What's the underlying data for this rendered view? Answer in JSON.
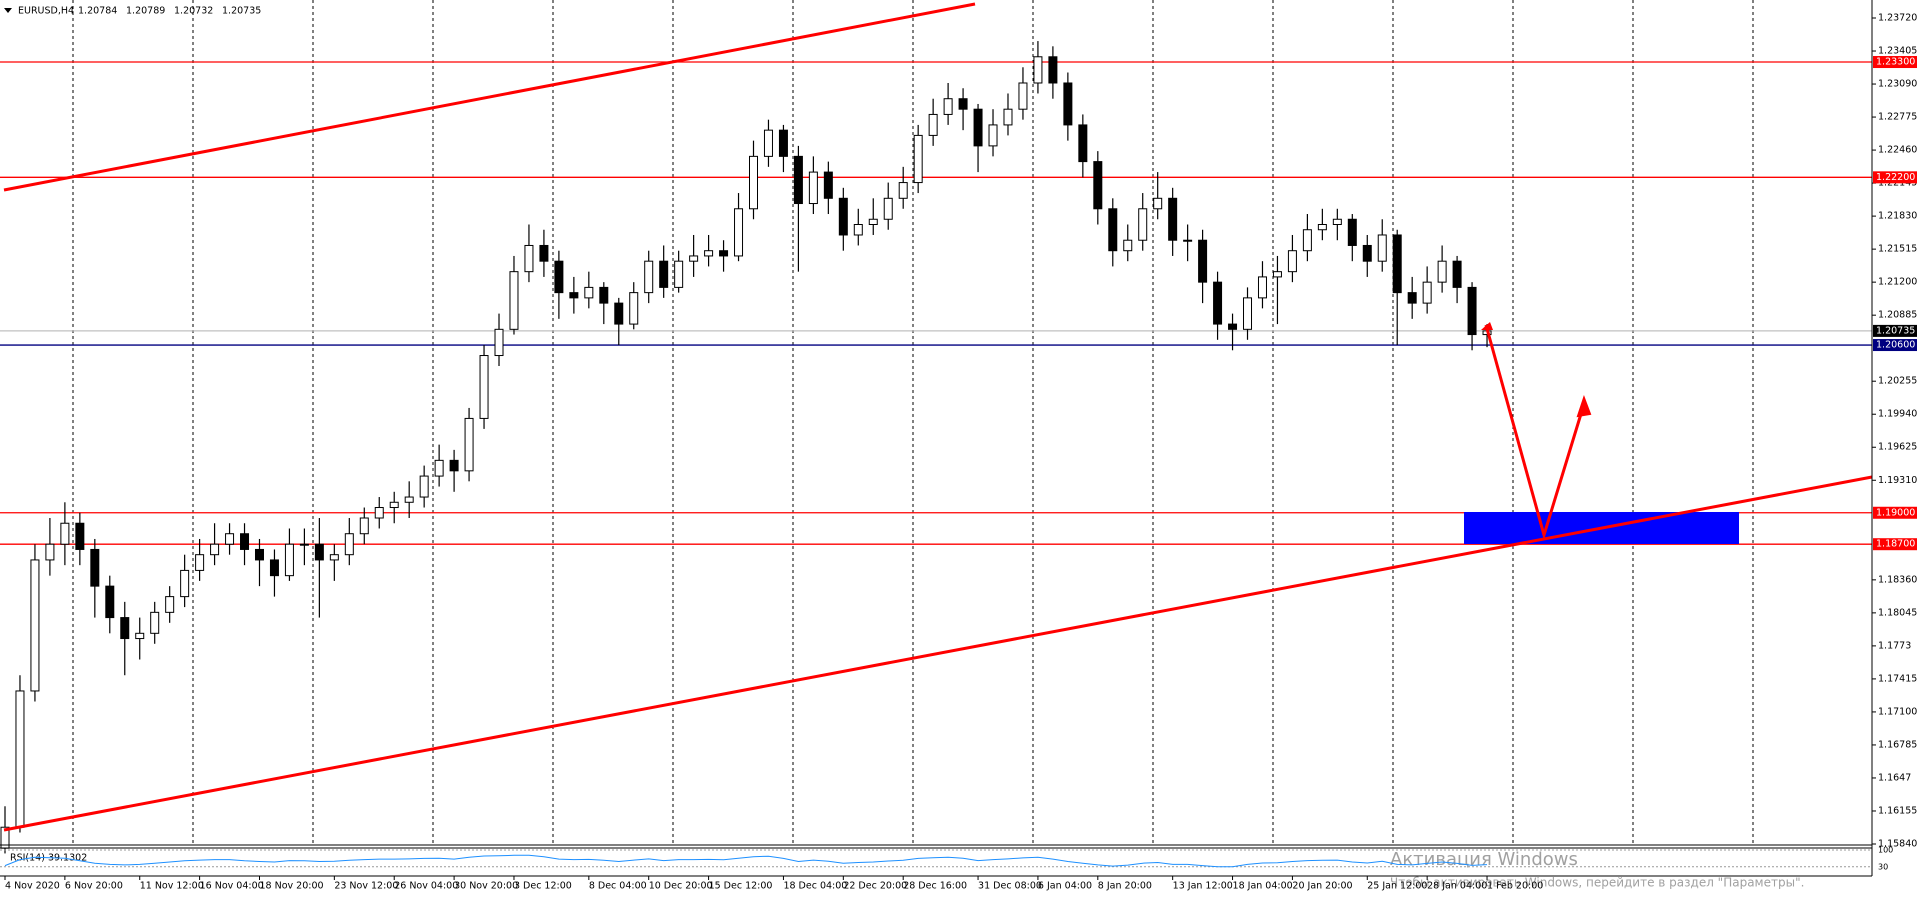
{
  "chart_data": {
    "type": "candlestick",
    "title": "EURUSD,H4",
    "header_values": [
      1.20784,
      1.20789,
      1.20732,
      1.20735
    ],
    "categories": [
      "4 Nov 2020",
      null,
      null,
      null,
      "6 Nov 20:00",
      null,
      null,
      null,
      null,
      "11 Nov 12:00",
      null,
      null,
      null,
      "16 Nov 04:00",
      null,
      null,
      null,
      "18 Nov 20:00",
      null,
      null,
      null,
      null,
      "23 Nov 12:00",
      null,
      null,
      null,
      "26 Nov 04:00",
      null,
      null,
      null,
      "30 Nov 20:00",
      null,
      null,
      null,
      "3 Dec 12:00",
      null,
      null,
      null,
      null,
      "8 Dec 04:00",
      null,
      null,
      null,
      "10 Dec 20:00",
      null,
      null,
      null,
      "15 Dec 12:00",
      null,
      null,
      null,
      null,
      "18 Dec 04:00",
      null,
      null,
      null,
      "22 Dec 20:00",
      null,
      null,
      null,
      "28 Dec 16:00",
      null,
      null,
      null,
      null,
      "31 Dec 08:00",
      null,
      null,
      null,
      "6 Jan 04:00",
      null,
      null,
      null,
      "8 Jan 20:00",
      null,
      null,
      null,
      null,
      "13 Jan 12:00",
      null,
      null,
      null,
      "18 Jan 04:00",
      null,
      null,
      null,
      "20 Jan 20:00",
      null,
      null,
      null,
      null,
      "25 Jan 12:00",
      null,
      null,
      null,
      "28 Jan 04:00",
      null,
      null,
      null,
      "1 Feb 20:00"
    ],
    "open": [
      1.158,
      1.16,
      1.173,
      1.1855,
      1.187,
      1.189,
      1.1865,
      1.183,
      1.18,
      1.178,
      1.1785,
      1.1805,
      1.182,
      1.1845,
      1.186,
      1.187,
      1.188,
      1.1865,
      1.1855,
      1.184,
      1.187,
      1.187,
      1.1855,
      1.186,
      1.188,
      1.1895,
      1.1905,
      1.191,
      1.1915,
      1.1935,
      1.195,
      1.194,
      1.199,
      1.205,
      1.2075,
      1.213,
      1.2155,
      1.214,
      1.211,
      1.2105,
      1.2115,
      1.21,
      1.208,
      1.211,
      1.214,
      1.2115,
      1.214,
      1.2145,
      1.215,
      1.2145,
      1.219,
      1.224,
      1.2265,
      1.224,
      1.2195,
      1.2225,
      1.22,
      1.2165,
      1.2175,
      1.218,
      1.22,
      1.2215,
      1.226,
      1.228,
      1.2295,
      1.2285,
      1.225,
      1.227,
      1.2285,
      1.231,
      1.2335,
      1.231,
      1.227,
      1.2235,
      1.219,
      1.215,
      1.216,
      1.219,
      1.22,
      1.216,
      1.216,
      1.212,
      1.208,
      1.2075,
      1.2105,
      1.2125,
      1.213,
      1.215,
      1.217,
      1.2175,
      1.218,
      1.2155,
      1.214,
      1.2165,
      1.211,
      1.21,
      1.212,
      1.214,
      1.2115,
      1.207
    ],
    "high": [
      1.162,
      1.1745,
      1.187,
      1.1895,
      1.191,
      1.19,
      1.1875,
      1.184,
      1.1815,
      1.18,
      1.1815,
      1.183,
      1.186,
      1.1875,
      1.189,
      1.189,
      1.189,
      1.1875,
      1.1865,
      1.1885,
      1.1885,
      1.1895,
      1.187,
      1.1895,
      1.1905,
      1.1915,
      1.192,
      1.193,
      1.1945,
      1.1965,
      1.196,
      1.2,
      1.206,
      1.209,
      1.2145,
      1.2175,
      1.217,
      1.215,
      1.2125,
      1.213,
      1.212,
      1.2105,
      1.212,
      1.215,
      1.2155,
      1.215,
      1.2165,
      1.2165,
      1.216,
      1.2205,
      1.2255,
      1.2275,
      1.227,
      1.225,
      1.224,
      1.2235,
      1.221,
      1.219,
      1.22,
      1.2215,
      1.223,
      1.227,
      1.2295,
      1.231,
      1.2305,
      1.229,
      1.2285,
      1.23,
      1.2325,
      1.235,
      1.2345,
      1.232,
      1.228,
      1.2245,
      1.22,
      1.2175,
      1.2205,
      1.2225,
      1.221,
      1.2175,
      1.217,
      1.213,
      1.209,
      1.2115,
      1.214,
      1.2145,
      1.2165,
      1.2185,
      1.219,
      1.219,
      1.2185,
      1.2165,
      1.218,
      1.217,
      1.2125,
      1.2135,
      1.2155,
      1.2145,
      1.212,
      1.208
    ],
    "low": [
      1.1575,
      1.1595,
      1.172,
      1.184,
      1.185,
      1.185,
      1.18,
      1.1785,
      1.1745,
      1.176,
      1.1775,
      1.1795,
      1.181,
      1.1835,
      1.185,
      1.186,
      1.185,
      1.183,
      1.182,
      1.1835,
      1.185,
      1.18,
      1.1835,
      1.185,
      1.187,
      1.1885,
      1.189,
      1.1895,
      1.1905,
      1.1925,
      1.192,
      1.193,
      1.198,
      1.204,
      1.207,
      1.212,
      1.2125,
      1.2085,
      1.209,
      1.2095,
      1.208,
      1.206,
      1.2075,
      1.21,
      1.2105,
      1.211,
      1.2125,
      1.2135,
      1.213,
      1.214,
      1.218,
      1.223,
      1.2225,
      1.213,
      1.2185,
      1.2185,
      1.215,
      1.2155,
      1.2165,
      1.217,
      1.219,
      1.2205,
      1.225,
      1.227,
      1.2265,
      1.2225,
      1.224,
      1.226,
      1.2275,
      1.23,
      1.2295,
      1.2255,
      1.222,
      1.2175,
      1.2135,
      1.214,
      1.215,
      1.218,
      1.2145,
      1.214,
      1.21,
      1.2065,
      1.2055,
      1.2065,
      1.2095,
      1.208,
      1.212,
      1.214,
      1.216,
      1.216,
      1.214,
      1.2125,
      1.213,
      1.206,
      1.2085,
      1.209,
      1.211,
      1.21,
      1.2055,
      1.2058
    ],
    "close": [
      1.16,
      1.173,
      1.1855,
      1.187,
      1.189,
      1.1865,
      1.183,
      1.18,
      1.178,
      1.1785,
      1.1805,
      1.182,
      1.1845,
      1.186,
      1.187,
      1.188,
      1.1865,
      1.1855,
      1.184,
      1.187,
      1.187,
      1.1855,
      1.186,
      1.188,
      1.1895,
      1.1905,
      1.191,
      1.1915,
      1.1935,
      1.195,
      1.194,
      1.199,
      1.205,
      1.2075,
      1.213,
      1.2155,
      1.214,
      1.211,
      1.2105,
      1.2115,
      1.21,
      1.208,
      1.211,
      1.214,
      1.2115,
      1.214,
      1.2145,
      1.215,
      1.2145,
      1.219,
      1.224,
      1.2265,
      1.224,
      1.2195,
      1.2225,
      1.22,
      1.2165,
      1.2175,
      1.218,
      1.22,
      1.2215,
      1.226,
      1.228,
      1.2295,
      1.2285,
      1.225,
      1.227,
      1.2285,
      1.231,
      1.2335,
      1.231,
      1.227,
      1.2235,
      1.219,
      1.215,
      1.216,
      1.219,
      1.22,
      1.216,
      1.216,
      1.212,
      1.208,
      1.2075,
      1.2105,
      1.2125,
      1.213,
      1.215,
      1.217,
      1.2175,
      1.218,
      1.2155,
      1.214,
      1.2165,
      1.211,
      1.21,
      1.212,
      1.214,
      1.2115,
      1.207,
      1.20735
    ],
    "ylim": [
      1.1584,
      1.2372
    ],
    "yticks": [
      {
        "value": 1.2372,
        "label": "1.23720"
      },
      1.23405,
      {
        "value": 1.2309,
        "label": "1.23090"
      },
      1.22775,
      {
        "value": 1.2246,
        "label": "1.22460"
      },
      1.22145,
      {
        "value": 1.2183,
        "label": "1.21830"
      },
      1.21515,
      {
        "value": 1.212,
        "label": "1.21200"
      },
      1.20885,
      1.20255,
      {
        "value": 1.1994,
        "label": "1.19940"
      },
      1.19625,
      {
        "value": 1.1931,
        "label": "1.19310"
      },
      {
        "value": 1.1836,
        "label": "1.18360"
      },
      1.18045,
      1.1773,
      1.17415,
      {
        "value": 1.171,
        "label": "1.17100"
      },
      1.16785,
      1.1647,
      1.16155,
      {
        "value": 1.1584,
        "label": "1.15840"
      }
    ],
    "levels": [
      {
        "value": 1.233,
        "label": "1.23300",
        "color": "#ff0000"
      },
      {
        "value": 1.222,
        "label": "1.22200",
        "color": "#ff0000"
      },
      {
        "value": 1.20735,
        "label": "1.20735",
        "color": "#c0c0c0"
      },
      {
        "value": 1.206,
        "label": "1.20600",
        "color": "#000080"
      },
      {
        "value": 1.19,
        "label": "1.19000",
        "color": "#ff0000"
      },
      {
        "value": 1.187,
        "label": "1.18700",
        "color": "#ff0000"
      }
    ],
    "rsi": {
      "label": "RSI(14) 39.1302",
      "color": "#1e90ff",
      "ylim": [
        0,
        100
      ],
      "yticks": [
        100,
        30
      ],
      "values": [
        35,
        60,
        70,
        68,
        66,
        55,
        45,
        40,
        38,
        40,
        45,
        50,
        55,
        58,
        60,
        60,
        55,
        52,
        50,
        56,
        55,
        52,
        53,
        57,
        60,
        62,
        62,
        63,
        65,
        66,
        62,
        70,
        75,
        76,
        78,
        78,
        72,
        62,
        60,
        61,
        57,
        52,
        58,
        63,
        56,
        60,
        60,
        61,
        59,
        66,
        72,
        74,
        65,
        52,
        58,
        53,
        45,
        48,
        50,
        54,
        57,
        65,
        68,
        70,
        66,
        56,
        60,
        63,
        67,
        70,
        62,
        52,
        45,
        38,
        33,
        37,
        45,
        48,
        40,
        40,
        35,
        30,
        30,
        40,
        46,
        47,
        52,
        56,
        57,
        58,
        50,
        46,
        53,
        40,
        38,
        44,
        50,
        44,
        36,
        39.1302
      ]
    },
    "watermark": [
      "Активация Windows",
      "Чтобы активировать Windows, перейдите в раздел \"Параметры\"."
    ]
  }
}
